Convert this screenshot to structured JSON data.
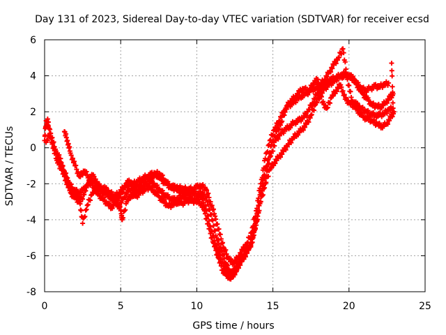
{
  "chart_data": {
    "type": "scatter",
    "title": "Day 131 of 2023, Sidereal Day-to-day VTEC variation (SDTVAR) for receiver ecsd",
    "xlabel": "GPS time / hours",
    "ylabel": "SDTVAR / TECUs",
    "xlim": [
      0,
      25
    ],
    "ylim": [
      -8,
      6
    ],
    "xticks": [
      0,
      5,
      10,
      15,
      20,
      25
    ],
    "yticks": [
      -8,
      -6,
      -4,
      -2,
      0,
      2,
      4,
      6
    ],
    "grid": true,
    "marker": "plus",
    "color": "#ff0000",
    "series": [
      {
        "values": [
          [
            0.0,
            0.4
          ],
          [
            0.1,
            1.5
          ],
          [
            0.25,
            1.2
          ],
          [
            0.5,
            0.3
          ],
          [
            0.8,
            -0.7
          ],
          [
            1.1,
            -1.2
          ],
          [
            1.4,
            -1.8
          ],
          [
            1.7,
            -2.5
          ],
          [
            2.0,
            -2.8
          ],
          [
            2.3,
            -3.0
          ],
          [
            2.6,
            -2.6
          ],
          [
            2.9,
            -1.8
          ],
          [
            3.2,
            -1.5
          ],
          [
            3.5,
            -2.1
          ],
          [
            3.8,
            -2.3
          ],
          [
            4.1,
            -2.6
          ],
          [
            4.4,
            -2.8
          ],
          [
            4.7,
            -2.9
          ],
          [
            5.0,
            -2.6
          ],
          [
            5.3,
            -2.1
          ],
          [
            5.6,
            -2.0
          ],
          [
            5.9,
            -2.2
          ],
          [
            6.2,
            -2.1
          ],
          [
            6.5,
            -1.8
          ],
          [
            6.8,
            -1.7
          ],
          [
            7.1,
            -1.6
          ],
          [
            7.4,
            -1.5
          ],
          [
            7.7,
            -1.8
          ],
          [
            8.0,
            -2.0
          ],
          [
            8.3,
            -2.2
          ],
          [
            8.6,
            -2.3
          ],
          [
            8.9,
            -2.4
          ],
          [
            9.2,
            -2.5
          ],
          [
            9.5,
            -2.6
          ],
          [
            9.8,
            -2.5
          ],
          [
            10.1,
            -2.6
          ],
          [
            10.4,
            -2.5
          ],
          [
            10.7,
            -3.0
          ],
          [
            11.0,
            -4.0
          ],
          [
            11.3,
            -5.0
          ],
          [
            11.6,
            -5.7
          ],
          [
            11.9,
            -6.4
          ],
          [
            12.1,
            -6.8
          ],
          [
            12.3,
            -7.0
          ],
          [
            12.5,
            -6.7
          ],
          [
            12.8,
            -6.2
          ],
          [
            13.1,
            -5.9
          ],
          [
            13.4,
            -5.6
          ],
          [
            13.7,
            -5.0
          ],
          [
            14.0,
            -3.8
          ],
          [
            14.3,
            -2.4
          ],
          [
            14.6,
            -1.3
          ],
          [
            14.9,
            -0.3
          ],
          [
            15.2,
            0.4
          ],
          [
            15.5,
            0.8
          ],
          [
            15.8,
            1.0
          ],
          [
            16.1,
            1.2
          ],
          [
            16.4,
            1.4
          ],
          [
            16.7,
            1.5
          ],
          [
            17.0,
            1.7
          ],
          [
            17.3,
            2.0
          ],
          [
            17.6,
            2.5
          ],
          [
            17.9,
            3.0
          ],
          [
            18.2,
            3.3
          ],
          [
            18.5,
            3.6
          ],
          [
            18.8,
            3.8
          ],
          [
            19.1,
            3.9
          ],
          [
            19.4,
            4.0
          ],
          [
            19.7,
            4.1
          ],
          [
            20.0,
            4.0
          ],
          [
            20.3,
            3.8
          ],
          [
            20.6,
            3.4
          ],
          [
            20.9,
            3.0
          ],
          [
            21.2,
            2.7
          ],
          [
            21.5,
            2.4
          ],
          [
            21.8,
            2.3
          ],
          [
            22.1,
            2.3
          ],
          [
            22.4,
            2.5
          ],
          [
            22.7,
            2.8
          ],
          [
            22.9,
            3.0
          ]
        ]
      },
      {
        "values": [
          [
            0.2,
            1.6
          ],
          [
            0.5,
            0.2
          ],
          [
            0.8,
            -0.4
          ],
          [
            1.1,
            -1.0
          ],
          [
            1.4,
            -1.6
          ],
          [
            1.7,
            -2.2
          ],
          [
            2.0,
            -2.6
          ],
          [
            2.3,
            -2.9
          ],
          [
            2.5,
            -4.2
          ],
          [
            2.8,
            -3.2
          ],
          [
            3.1,
            -2.6
          ],
          [
            3.4,
            -2.2
          ],
          [
            3.7,
            -2.4
          ],
          [
            4.0,
            -2.5
          ],
          [
            4.3,
            -2.7
          ],
          [
            4.6,
            -2.9
          ],
          [
            4.9,
            -3.2
          ],
          [
            5.2,
            -2.8
          ],
          [
            5.5,
            -2.4
          ],
          [
            5.8,
            -2.3
          ],
          [
            6.1,
            -2.4
          ],
          [
            6.4,
            -2.2
          ],
          [
            6.7,
            -2.0
          ],
          [
            7.0,
            -1.9
          ],
          [
            7.3,
            -2.1
          ],
          [
            7.6,
            -2.4
          ],
          [
            7.9,
            -2.6
          ],
          [
            8.2,
            -2.8
          ],
          [
            8.5,
            -2.9
          ],
          [
            8.8,
            -2.8
          ],
          [
            9.1,
            -2.7
          ],
          [
            9.4,
            -2.8
          ],
          [
            9.7,
            -2.9
          ],
          [
            10.0,
            -2.8
          ],
          [
            10.3,
            -2.7
          ],
          [
            10.6,
            -3.4
          ],
          [
            10.9,
            -4.4
          ],
          [
            11.2,
            -5.3
          ],
          [
            11.5,
            -6.0
          ],
          [
            11.8,
            -6.6
          ],
          [
            12.0,
            -7.0
          ],
          [
            12.2,
            -7.2
          ],
          [
            12.4,
            -7.1
          ],
          [
            12.7,
            -6.6
          ],
          [
            13.0,
            -6.2
          ],
          [
            13.3,
            -5.8
          ],
          [
            13.6,
            -5.3
          ],
          [
            13.9,
            -4.3
          ],
          [
            14.2,
            -3.0
          ],
          [
            14.5,
            -2.0
          ],
          [
            14.8,
            -1.2
          ],
          [
            15.1,
            -0.8
          ],
          [
            15.4,
            -0.5
          ],
          [
            15.7,
            -0.2
          ],
          [
            16.0,
            0.2
          ],
          [
            16.3,
            0.5
          ],
          [
            16.6,
            0.8
          ],
          [
            16.9,
            1.0
          ],
          [
            17.2,
            1.3
          ],
          [
            17.5,
            1.8
          ],
          [
            17.8,
            2.4
          ],
          [
            18.1,
            2.9
          ],
          [
            18.4,
            3.3
          ],
          [
            18.7,
            3.5
          ],
          [
            19.0,
            3.7
          ],
          [
            19.3,
            3.9
          ],
          [
            19.6,
            4.0
          ],
          [
            19.9,
            4.1
          ],
          [
            20.2,
            3.9
          ],
          [
            20.5,
            3.6
          ],
          [
            20.8,
            3.3
          ],
          [
            21.1,
            3.2
          ],
          [
            21.4,
            3.3
          ],
          [
            21.7,
            3.4
          ],
          [
            22.0,
            3.4
          ],
          [
            22.3,
            3.5
          ],
          [
            22.6,
            3.6
          ]
        ]
      },
      {
        "values": [
          [
            0.1,
            0.3
          ],
          [
            0.4,
            0.8
          ],
          [
            0.7,
            -0.1
          ],
          [
            1.0,
            -0.6
          ],
          [
            1.3,
            -1.3
          ],
          [
            1.6,
            -2.0
          ],
          [
            1.9,
            -2.3
          ],
          [
            2.2,
            -2.5
          ],
          [
            2.5,
            -2.4
          ],
          [
            2.8,
            -2.1
          ],
          [
            3.1,
            -1.9
          ],
          [
            3.4,
            -2.0
          ],
          [
            3.7,
            -2.2
          ],
          [
            4.0,
            -2.3
          ],
          [
            4.3,
            -2.5
          ],
          [
            4.6,
            -2.7
          ],
          [
            4.9,
            -2.5
          ],
          [
            5.2,
            -2.2
          ],
          [
            5.5,
            -1.9
          ],
          [
            5.8,
            -2.0
          ],
          [
            6.1,
            -1.9
          ],
          [
            6.4,
            -1.7
          ],
          [
            6.7,
            -1.6
          ],
          [
            7.0,
            -1.5
          ],
          [
            7.3,
            -1.4
          ],
          [
            7.6,
            -1.5
          ],
          [
            7.9,
            -1.8
          ],
          [
            8.2,
            -2.1
          ],
          [
            8.5,
            -2.2
          ],
          [
            8.8,
            -2.2
          ],
          [
            9.1,
            -2.3
          ],
          [
            9.4,
            -2.3
          ],
          [
            9.7,
            -2.3
          ],
          [
            10.0,
            -2.2
          ],
          [
            10.3,
            -2.1
          ],
          [
            10.6,
            -2.3
          ],
          [
            10.9,
            -3.0
          ],
          [
            11.2,
            -3.8
          ],
          [
            11.5,
            -4.8
          ],
          [
            11.8,
            -5.6
          ],
          [
            12.1,
            -6.2
          ],
          [
            12.4,
            -6.4
          ],
          [
            12.7,
            -6.1
          ],
          [
            13.0,
            -5.7
          ],
          [
            13.3,
            -5.3
          ],
          [
            13.6,
            -4.7
          ],
          [
            13.9,
            -3.5
          ],
          [
            14.2,
            -2.0
          ],
          [
            14.5,
            -0.6
          ],
          [
            14.8,
            0.4
          ],
          [
            15.1,
            1.0
          ],
          [
            15.4,
            1.5
          ],
          [
            15.7,
            2.0
          ],
          [
            16.0,
            2.3
          ],
          [
            16.3,
            2.5
          ],
          [
            16.6,
            2.7
          ],
          [
            16.9,
            2.9
          ],
          [
            17.2,
            3.0
          ],
          [
            17.5,
            3.2
          ],
          [
            17.8,
            3.3
          ],
          [
            18.1,
            3.5
          ],
          [
            18.4,
            3.8
          ],
          [
            18.7,
            4.2
          ],
          [
            19.0,
            4.6
          ],
          [
            19.3,
            5.0
          ],
          [
            19.6,
            5.5
          ],
          [
            19.9,
            3.8
          ],
          [
            20.2,
            2.6
          ],
          [
            20.5,
            2.4
          ],
          [
            20.8,
            2.2
          ],
          [
            21.1,
            2.0
          ],
          [
            21.4,
            1.9
          ],
          [
            21.7,
            1.8
          ],
          [
            22.0,
            1.8
          ],
          [
            22.3,
            1.9
          ],
          [
            22.6,
            2.1
          ],
          [
            22.9,
            2.2
          ],
          [
            22.8,
            4.7
          ]
        ]
      },
      {
        "values": [
          [
            1.3,
            0.9
          ],
          [
            1.5,
            0.4
          ],
          [
            1.7,
            -0.3
          ],
          [
            2.0,
            -1.0
          ],
          [
            2.3,
            -1.6
          ],
          [
            2.6,
            -1.3
          ],
          [
            2.9,
            -1.6
          ],
          [
            3.2,
            -2.2
          ],
          [
            3.5,
            -2.6
          ],
          [
            3.8,
            -2.8
          ],
          [
            4.1,
            -3.1
          ],
          [
            4.4,
            -3.3
          ],
          [
            4.7,
            -3.0
          ],
          [
            5.0,
            -3.5
          ],
          [
            5.1,
            -4.0
          ],
          [
            5.4,
            -3.0
          ],
          [
            5.7,
            -2.6
          ],
          [
            6.0,
            -2.7
          ],
          [
            6.3,
            -2.5
          ],
          [
            6.6,
            -2.3
          ],
          [
            6.9,
            -2.2
          ],
          [
            7.2,
            -2.4
          ],
          [
            7.5,
            -2.7
          ],
          [
            7.8,
            -3.0
          ],
          [
            8.1,
            -3.2
          ],
          [
            8.4,
            -3.2
          ],
          [
            8.7,
            -3.0
          ],
          [
            9.0,
            -3.1
          ],
          [
            9.3,
            -3.0
          ],
          [
            9.6,
            -2.9
          ],
          [
            9.9,
            -3.0
          ],
          [
            10.2,
            -3.0
          ],
          [
            10.5,
            -3.5
          ],
          [
            10.8,
            -4.5
          ],
          [
            11.1,
            -5.3
          ],
          [
            11.4,
            -6.1
          ],
          [
            11.7,
            -6.8
          ],
          [
            11.95,
            -7.1
          ],
          [
            12.25,
            -7.2
          ],
          [
            12.55,
            -6.9
          ],
          [
            12.85,
            -6.4
          ],
          [
            13.15,
            -6.0
          ],
          [
            13.45,
            -5.6
          ],
          [
            13.75,
            -4.7
          ],
          [
            14.05,
            -3.2
          ],
          [
            14.35,
            -1.8
          ],
          [
            14.65,
            -0.7
          ],
          [
            14.95,
            0.3
          ],
          [
            15.25,
            0.9
          ],
          [
            15.55,
            1.4
          ],
          [
            15.85,
            2.2
          ],
          [
            16.15,
            2.6
          ],
          [
            16.45,
            2.8
          ],
          [
            16.75,
            3.1
          ],
          [
            17.05,
            3.3
          ],
          [
            17.35,
            3.1
          ],
          [
            17.65,
            3.6
          ],
          [
            17.95,
            3.8
          ],
          [
            18.25,
            2.5
          ],
          [
            18.55,
            2.2
          ],
          [
            18.85,
            2.8
          ],
          [
            19.15,
            3.2
          ],
          [
            19.45,
            3.5
          ],
          [
            19.75,
            2.7
          ],
          [
            20.05,
            2.5
          ],
          [
            20.35,
            2.3
          ],
          [
            20.65,
            2.0
          ],
          [
            20.95,
            1.7
          ],
          [
            21.25,
            1.6
          ],
          [
            21.55,
            1.5
          ],
          [
            21.85,
            1.3
          ],
          [
            22.15,
            1.2
          ],
          [
            22.45,
            1.3
          ],
          [
            22.75,
            1.7
          ],
          [
            22.95,
            2.0
          ]
        ]
      }
    ]
  }
}
